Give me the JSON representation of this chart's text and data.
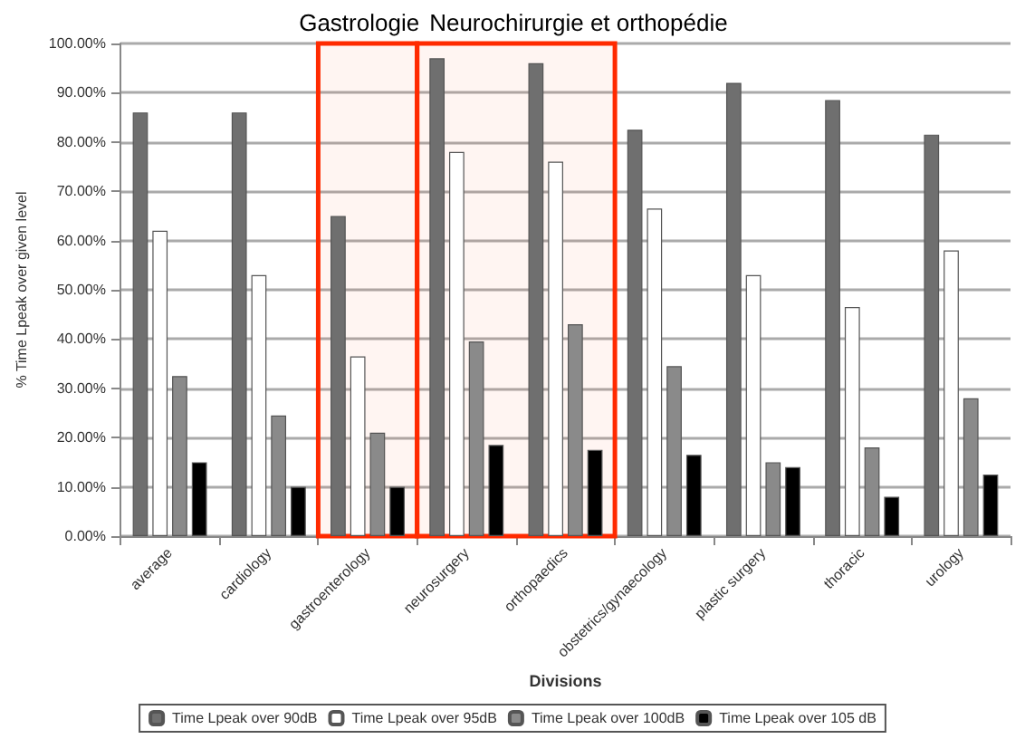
{
  "chart_data": {
    "type": "bar",
    "categories": [
      "average",
      "cardiology",
      "gastroenterology",
      "neurosurgery",
      "orthopaedics",
      "obstetrics/gynaecology",
      "plastic surgery",
      "thoracic",
      "urology"
    ],
    "series": [
      {
        "name": "Time Lpeak over 90dB",
        "color": "#6f6f6f",
        "values": [
          86,
          86,
          65,
          97,
          96,
          82.5,
          92,
          88.5,
          81.5
        ]
      },
      {
        "name": "Time Lpeak over 95dB",
        "color": "#ffffff",
        "values": [
          62,
          53,
          36.5,
          78,
          76,
          66.5,
          53,
          46.5,
          58
        ]
      },
      {
        "name": "Time Lpeak over 100dB",
        "color": "#8a8a8a",
        "values": [
          32.5,
          24.5,
          21,
          39.5,
          43,
          34.5,
          15,
          18,
          28
        ]
      },
      {
        "name": "Time Lpeak over 105 dB",
        "color": "#000000",
        "values": [
          15,
          10,
          10,
          18.5,
          17.5,
          16.5,
          14,
          8,
          12.5
        ]
      }
    ],
    "xlabel": "Divisions",
    "ylabel": "% Time Lpeak over given level",
    "ylim": [
      0,
      100
    ],
    "yticks": [
      {
        "value": 0,
        "label": "0.00%"
      },
      {
        "value": 10,
        "label": "10.00%"
      },
      {
        "value": 20,
        "label": "20.00%"
      },
      {
        "value": 30,
        "label": "30.00%"
      },
      {
        "value": 40,
        "label": "40.00%"
      },
      {
        "value": 50,
        "label": "50.00%"
      },
      {
        "value": 60,
        "label": "60.00%"
      },
      {
        "value": 70,
        "label": "70.00%"
      },
      {
        "value": 80,
        "label": "80.00%"
      },
      {
        "value": 90,
        "label": "90.00%"
      },
      {
        "value": 100,
        "label": "100.00%"
      }
    ],
    "bands": [
      {
        "axis": "x",
        "from": "gastroenterology",
        "to": "gastroenterology",
        "label": "Gastrologie",
        "color": "#ff2a00"
      },
      {
        "axis": "x",
        "from": "neurosurgery",
        "to": "orthopaedics",
        "label": "Neurochirurgie et orthopédie",
        "color": "#ff2a00"
      }
    ],
    "grid": "y",
    "legend": "bottom"
  }
}
